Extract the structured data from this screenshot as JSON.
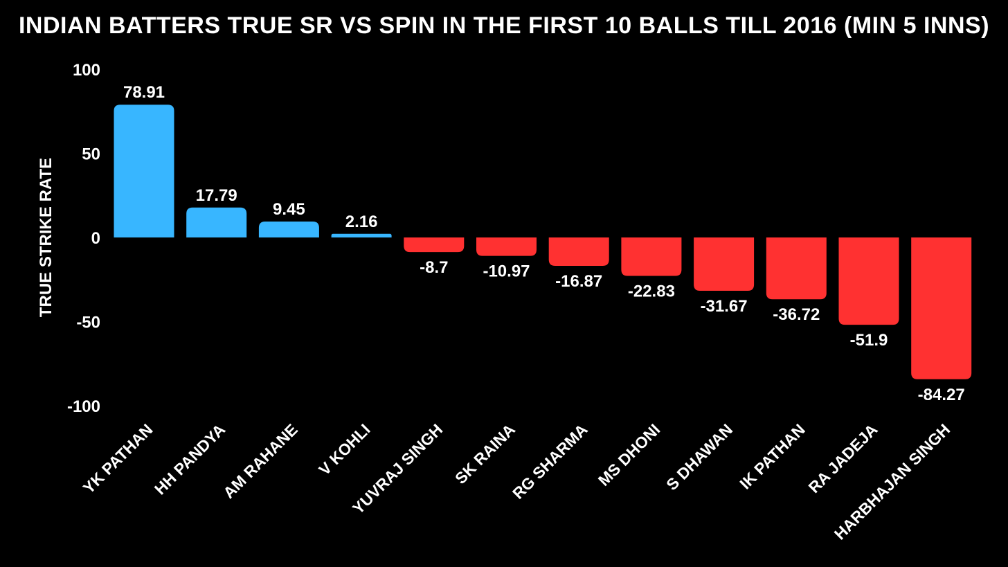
{
  "chart_data": {
    "type": "bar",
    "title": "INDIAN BATTERS TRUE SR VS SPIN IN THE FIRST 10 BALLS TILL 2016 (MIN 5 INNS)",
    "xlabel": "",
    "ylabel": "TRUE STRIKE RATE",
    "ylim": [
      -100,
      100
    ],
    "yticks": [
      100,
      50,
      0,
      -50,
      -100
    ],
    "grid": false,
    "categories": [
      "YK PATHAN",
      "HH PANDYA",
      "AM RAHANE",
      "V KOHLI",
      "YUVRAJ SINGH",
      "SK RAINA",
      "RG SHARMA",
      "MS DHONI",
      "S DHAWAN",
      "IK PATHAN",
      "RA JADEJA",
      "HARBHAJAN SINGH"
    ],
    "values": [
      78.91,
      17.79,
      9.45,
      2.16,
      -8.7,
      -10.97,
      -16.87,
      -22.83,
      -31.67,
      -36.72,
      -51.9,
      -84.27
    ],
    "data_labels": [
      "78.91",
      "17.79",
      "9.45",
      "2.16",
      "-8.7",
      "-10.97",
      "-16.87",
      "-22.83",
      "-31.67",
      "-36.72",
      "-51.9",
      "-84.27"
    ],
    "colors": {
      "positive": "#38b6ff",
      "negative": "#ff3131",
      "background": "#000000",
      "text": "#ffffff"
    }
  }
}
